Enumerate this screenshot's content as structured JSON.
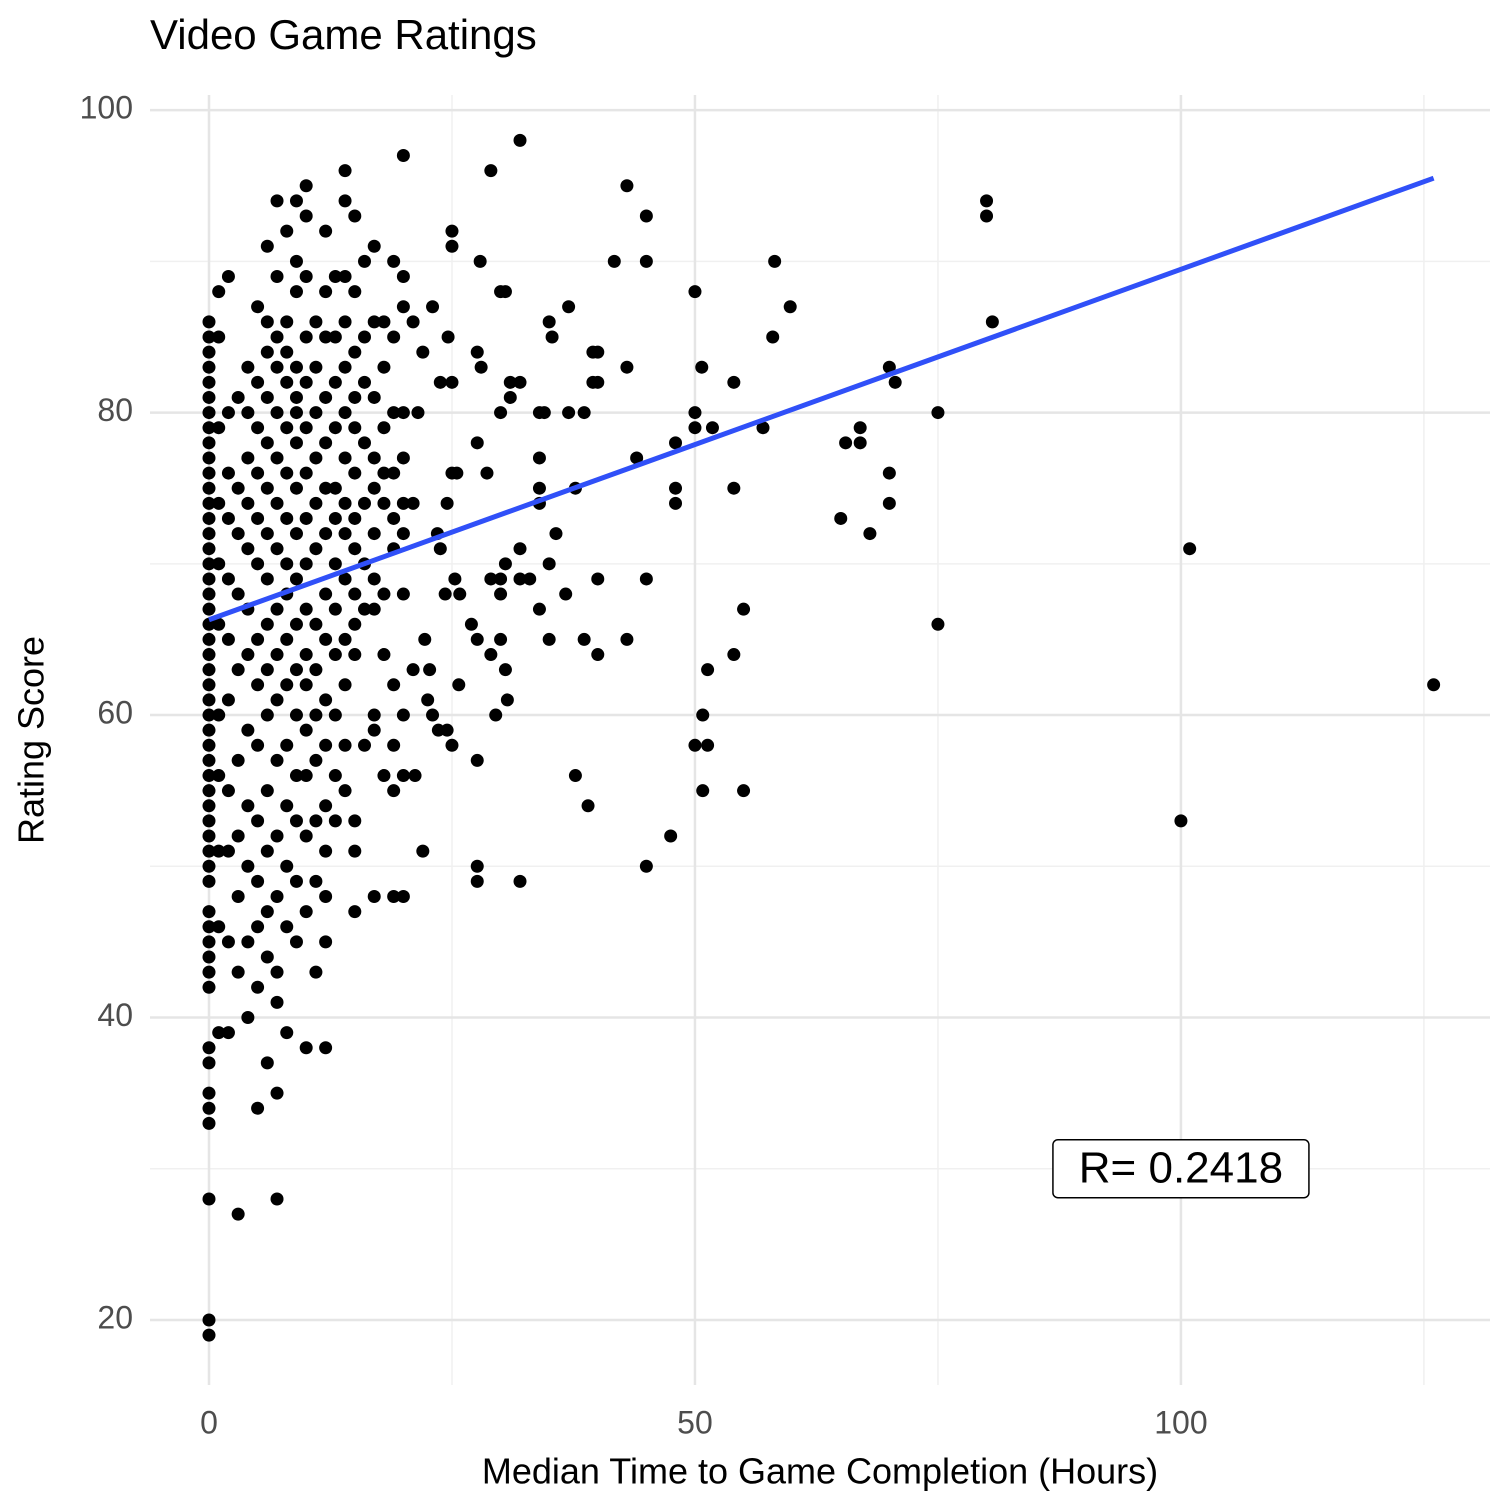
{
  "chart_data": {
    "type": "scatter",
    "title": "Video Game Ratings",
    "x_label": "Median Time to Game Completion (Hours)",
    "y_label": "Rating Score",
    "color": "#000000",
    "xlim": [
      -6.07,
      131.8
    ],
    "ylim": [
      15.7,
      101
    ],
    "xticks": [
      0,
      50,
      100
    ],
    "yticks": [
      20,
      40,
      60,
      80,
      100
    ],
    "x_minor_grid": [
      25,
      75,
      125
    ],
    "y_minor_grid": [
      30,
      50,
      70,
      90
    ],
    "grid": true,
    "trend": {
      "x": [
        0,
        126
      ],
      "values": [
        66.3,
        95.5
      ],
      "color": "#3050f8"
    },
    "annotation": {
      "text": "R= 0.2418",
      "x": 100,
      "y": 30
    },
    "x": [
      0,
      0,
      0,
      0,
      0,
      0,
      0,
      0,
      0,
      0,
      0,
      0,
      0,
      0,
      0,
      0,
      0,
      0,
      0,
      0,
      0,
      0,
      0,
      0,
      0,
      0,
      0,
      0,
      0,
      0,
      0,
      0,
      0,
      0,
      0,
      0,
      0,
      0,
      0,
      0,
      0,
      0,
      0,
      0,
      0,
      0,
      0,
      0,
      0,
      0,
      0,
      0,
      1,
      1,
      1,
      1,
      1,
      1,
      1,
      1,
      1,
      1,
      1,
      2,
      2,
      2,
      2,
      2,
      2,
      2,
      2,
      2,
      2,
      2,
      3,
      3,
      3,
      3,
      3,
      3,
      3,
      3,
      3,
      3,
      4,
      4,
      4,
      4,
      4,
      4,
      4,
      4,
      4,
      4,
      4,
      4,
      5,
      5,
      5,
      5,
      5,
      5,
      5,
      5,
      5,
      5,
      5,
      5,
      5,
      5,
      6,
      6,
      6,
      6,
      6,
      6,
      6,
      6,
      6,
      6,
      6,
      6,
      6,
      6,
      6,
      6,
      7,
      7,
      7,
      7,
      7,
      7,
      7,
      7,
      7,
      7,
      7,
      7,
      7,
      7,
      7,
      7,
      7,
      7,
      8,
      8,
      8,
      8,
      8,
      8,
      8,
      8,
      8,
      8,
      8,
      8,
      8,
      8,
      8,
      8,
      9,
      9,
      9,
      9,
      9,
      9,
      9,
      9,
      9,
      9,
      9,
      9,
      9,
      9,
      9,
      9,
      9,
      10,
      10,
      10,
      10,
      10,
      10,
      10,
      10,
      10,
      10,
      10,
      10,
      10,
      10,
      10,
      10,
      10,
      11,
      11,
      11,
      11,
      11,
      11,
      11,
      11,
      11,
      11,
      11,
      11,
      11,
      12,
      12,
      12,
      12,
      12,
      12,
      12,
      12,
      12,
      12,
      12,
      12,
      12,
      12,
      12,
      12,
      13,
      13,
      13,
      13,
      13,
      13,
      13,
      13,
      13,
      13,
      13,
      13,
      14,
      14,
      14,
      14,
      14,
      14,
      14,
      14,
      14,
      14,
      14,
      14,
      14,
      14,
      15,
      15,
      15,
      15,
      15,
      15,
      15,
      15,
      15,
      15,
      15,
      15,
      15,
      15,
      16,
      16,
      16,
      16,
      16,
      16,
      16,
      16,
      17,
      17,
      17,
      17,
      17,
      17,
      17,
      17,
      17,
      17,
      17,
      18,
      18,
      18,
      18,
      18,
      18,
      18,
      18,
      19,
      19,
      19,
      19,
      19,
      19,
      19,
      19,
      19,
      19,
      20,
      20,
      20,
      20,
      20,
      20,
      20,
      20,
      20,
      20,
      20,
      126,
      100.9,
      100,
      80,
      80,
      80.6,
      75,
      75,
      70,
      70.6,
      70,
      70,
      68,
      65,
      67,
      67,
      65.5,
      58.2,
      59.8,
      58,
      57,
      55,
      55,
      54,
      54,
      54,
      50.7,
      51.8,
      50,
      50,
      50,
      50.8,
      51.3,
      50,
      51.3,
      50.8,
      47.5,
      45,
      48,
      48,
      48,
      45,
      45,
      45,
      43,
      41.7,
      43,
      44,
      43,
      40,
      39.5,
      40,
      39.5,
      38.6,
      37,
      37.7,
      37,
      35,
      35.3,
      34,
      34.5,
      34,
      34,
      34,
      35.7,
      35,
      34,
      35,
      36.7,
      38.6,
      40,
      40,
      37.7,
      39,
      32,
      29,
      27.9,
      30,
      30.5,
      31,
      32,
      31,
      30,
      28.6,
      27.6,
      28,
      27.6,
      32,
      32,
      33,
      30.5,
      30,
      29,
      30,
      27,
      27.6,
      29,
      30.5,
      30,
      30.7,
      29.5,
      27.6,
      27.6,
      27.6,
      32,
      25,
      25,
      25,
      25,
      25.5,
      23.8,
      24.6,
      24.5,
      25.3,
      25.8,
      25.7,
      25,
      24.5,
      23.6,
      23,
      22.5,
      22.7,
      22.2,
      22,
      23,
      23.5,
      23.8,
      24.3,
      21,
      21.5,
      22,
      21,
      21,
      21.2
    ],
    "values": [
      19,
      20,
      28,
      33,
      34,
      35,
      37,
      38,
      42,
      43,
      44,
      45,
      46,
      47,
      49,
      50,
      51,
      52,
      53,
      54,
      55,
      56,
      57,
      58,
      59,
      60,
      61,
      62,
      63,
      64,
      65,
      66,
      67,
      68,
      69,
      70,
      71,
      72,
      73,
      74,
      75,
      76,
      77,
      78,
      79,
      80,
      81,
      82,
      83,
      84,
      85,
      86,
      39,
      46,
      51,
      56,
      60,
      66,
      70,
      74,
      79,
      85,
      88,
      39,
      45,
      51,
      55,
      61,
      65,
      69,
      73,
      76,
      80,
      89,
      27,
      43,
      48,
      52,
      57,
      63,
      68,
      72,
      75,
      81,
      40,
      45,
      50,
      54,
      59,
      64,
      67,
      71,
      74,
      77,
      80,
      83,
      34,
      42,
      46,
      49,
      53,
      58,
      62,
      65,
      70,
      73,
      76,
      79,
      82,
      87,
      37,
      44,
      47,
      51,
      55,
      60,
      63,
      66,
      69,
      72,
      75,
      78,
      81,
      84,
      86,
      91,
      28,
      35,
      41,
      43,
      48,
      52,
      57,
      61,
      64,
      67,
      71,
      74,
      77,
      80,
      83,
      85,
      89,
      94,
      39,
      46,
      50,
      54,
      58,
      62,
      65,
      68,
      70,
      73,
      76,
      79,
      82,
      84,
      86,
      92,
      45,
      49,
      53,
      56,
      60,
      63,
      66,
      69,
      72,
      75,
      78,
      80,
      81,
      83,
      88,
      90,
      94,
      38,
      47,
      52,
      56,
      59,
      62,
      64,
      67,
      70,
      73,
      76,
      79,
      82,
      85,
      89,
      93,
      95,
      43,
      49,
      53,
      57,
      60,
      63,
      66,
      71,
      74,
      77,
      80,
      83,
      86,
      38,
      45,
      48,
      51,
      54,
      58,
      61,
      65,
      68,
      72,
      75,
      78,
      81,
      85,
      88,
      92,
      53,
      56,
      60,
      64,
      67,
      70,
      73,
      75,
      79,
      82,
      85,
      89,
      55,
      58,
      62,
      65,
      69,
      72,
      74,
      77,
      80,
      83,
      86,
      89,
      94,
      96,
      47,
      51,
      53,
      64,
      66,
      68,
      71,
      73,
      76,
      79,
      81,
      84,
      88,
      93,
      58,
      67,
      70,
      74,
      78,
      82,
      85,
      90,
      48,
      59,
      60,
      67,
      69,
      72,
      75,
      77,
      81,
      86,
      91,
      56,
      64,
      68,
      74,
      76,
      79,
      83,
      86,
      48,
      55,
      58,
      62,
      71,
      73,
      76,
      80,
      85,
      90,
      48,
      56,
      60,
      68,
      72,
      74,
      77,
      80,
      87,
      89,
      97,
      62,
      71,
      53,
      94,
      93,
      86,
      80,
      66,
      83,
      82,
      76,
      74,
      72,
      73,
      79,
      78,
      78,
      90,
      87,
      85,
      79,
      67,
      55,
      64,
      75,
      82,
      83,
      79,
      80,
      79,
      88,
      60,
      63,
      58,
      58,
      55,
      52,
      50,
      75,
      74,
      78,
      69,
      90,
      93,
      95,
      90,
      83,
      77,
      65,
      84,
      84,
      82,
      82,
      80,
      80,
      75,
      87,
      86,
      85,
      80,
      80,
      77,
      75,
      74,
      72,
      70,
      67,
      65,
      68,
      65,
      64,
      69,
      56,
      54,
      98,
      96,
      90,
      88,
      88,
      82,
      82,
      81,
      80,
      76,
      84,
      83,
      78,
      71,
      69,
      69,
      70,
      69,
      69,
      68,
      66,
      65,
      64,
      63,
      65,
      61,
      60,
      57,
      50,
      49,
      49,
      92,
      91,
      82,
      76,
      76,
      82,
      85,
      74,
      69,
      68,
      62,
      58,
      59,
      59,
      60,
      61,
      63,
      65,
      51,
      87,
      72,
      71,
      68,
      86,
      80,
      84,
      74,
      63,
      56
    ]
  }
}
